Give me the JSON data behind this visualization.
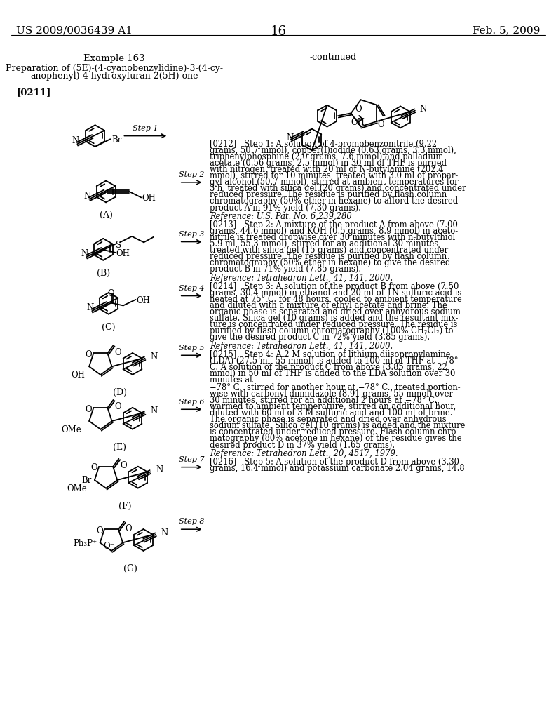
{
  "page_number": "16",
  "left_header": "US 2009/0036439 A1",
  "right_header": "Feb. 5, 2009",
  "example_title": "Example 163",
  "preparation_line1": "Preparation of (5E)-(4-cyanobenzylidine)-3-(4-cy-",
  "preparation_line2": "anophenyl)-4-hydroxyfuran-2(5H)-one",
  "paragraph_ref": "[0211]",
  "continued_label": "-continued",
  "background_color": "#ffffff",
  "text_color": "#000000",
  "para_0212": "[0212]   Step 1: A solution of 4-bromobenzonitrile (9.22\ngrams, 50.7 mmol), copper(I)iodide (0.63 grams, 3.3 mmol),\ntriphenylphosphine (2.0 grams, 7.6 mmol) and palladium\nacetate (0.56 grams, 2.5 mmol) in 30 ml of THF is purged\nwith nitrogen, treated with 20 ml of N-butylamine (202.4\nmmol), stirred for 10 minutes, treated with 3.0 ml of propar-\ngyl alcohol (50.7 mmol), stirred at ambient temperatures for\n3 h, treated with silica gel (20 grams) and concentrated under\nreduced pressure. The residue is purified by flash column\nchromatography (50% ether in hexane) to afford the desired\nproduct A in 91% yield (7.30 grams).",
  "ref_0212": "Reference: U.S. Pat. No. 6,239,280",
  "para_0213": "[0213]   Step 2: A mixture of the product A from above (7.00\ngrams, 44.6 mmol) and KOH (0.5 grams, 8.9 mmol) in aceto-\nnitrile is treated dropwise over 30 minutes with n-butylthiol\n5.9 ml, 55.3 mmol), stirred for an additional 30 minutes,\ntreated with silica gel (15 grams) and concentrated under\nreduced pressure. The residue is purified by flash column\nchromatography (50% ether in hexane) to give the desired\nproduct B in 71% yield (7.85 grams).",
  "ref_0213": "Reference: Tetrahedron Lett., 41, 141, 2000.",
  "para_0214": "[0214]   Step 3: A solution of the product B from above (7.50\ngrams, 30.4 mmol) in ethanol and 20 ml of 1N sulfuric acid is\nheated at 75° C. for 48 hours, cooled to ambient temperature\nand diluted with a mixture of ethyl acetate and brine. The\norganic phase is separated and dried over anhydrous sodium\nsulfate. Silica gel (10 grams) is added and the resultant mix-\nture is concentrated under reduced pressure. The residue is\npurified by flash column chromatography (100% CH₂Cl₂) to\ngive the desired product C in 72% yield (3.85 grams).",
  "ref_0214": "Reference: Tetrahedron Lett., 41, 141, 2000.",
  "para_0215a": "[0215]   Step 4: A 2 M solution of lithium diisopropylamine\n(LDA) (27.5 ml, 55 mmol) is added to 100 ml of THF at −78°\nC. A solution of the product C from above (3.85 grams, 22\nmmol) in 50 ml of THF is added to the LDA solution over 30\nminutes at",
  "para_0215b": "−78° C., stirred for another hour at −78° C., treated portion-\nwise with carbonyl diimidazole (8.91 grams, 55 mmol) over\n30 minutes, stirred for an additional 2 hours at −78° C.,\nwarmed to ambient temperature, stirred an additional hour,\ndiluted with 60 ml of 3 M sulfuric acid and 100 ml of brine.\nThe organic phase is separated and dried over anhydrous\nsodium sulfate. Silica gel (10 grams) is added and the mixture\nis concentrated under reduced pressure. Flash column chro-\nmatography (80% acetone in hexane) of the residue gives the\ndesired product D in 37% yield (1.65 grams).",
  "ref_0215": "Reference: Tetrahedron Lett., 20, 4517, 1979.",
  "para_0216": "[0216]   Step 5: A solution of the product D from above (3.30\ngrams, 16.4 mmol) and potassium carbonate 2.04 grams, 14.8"
}
